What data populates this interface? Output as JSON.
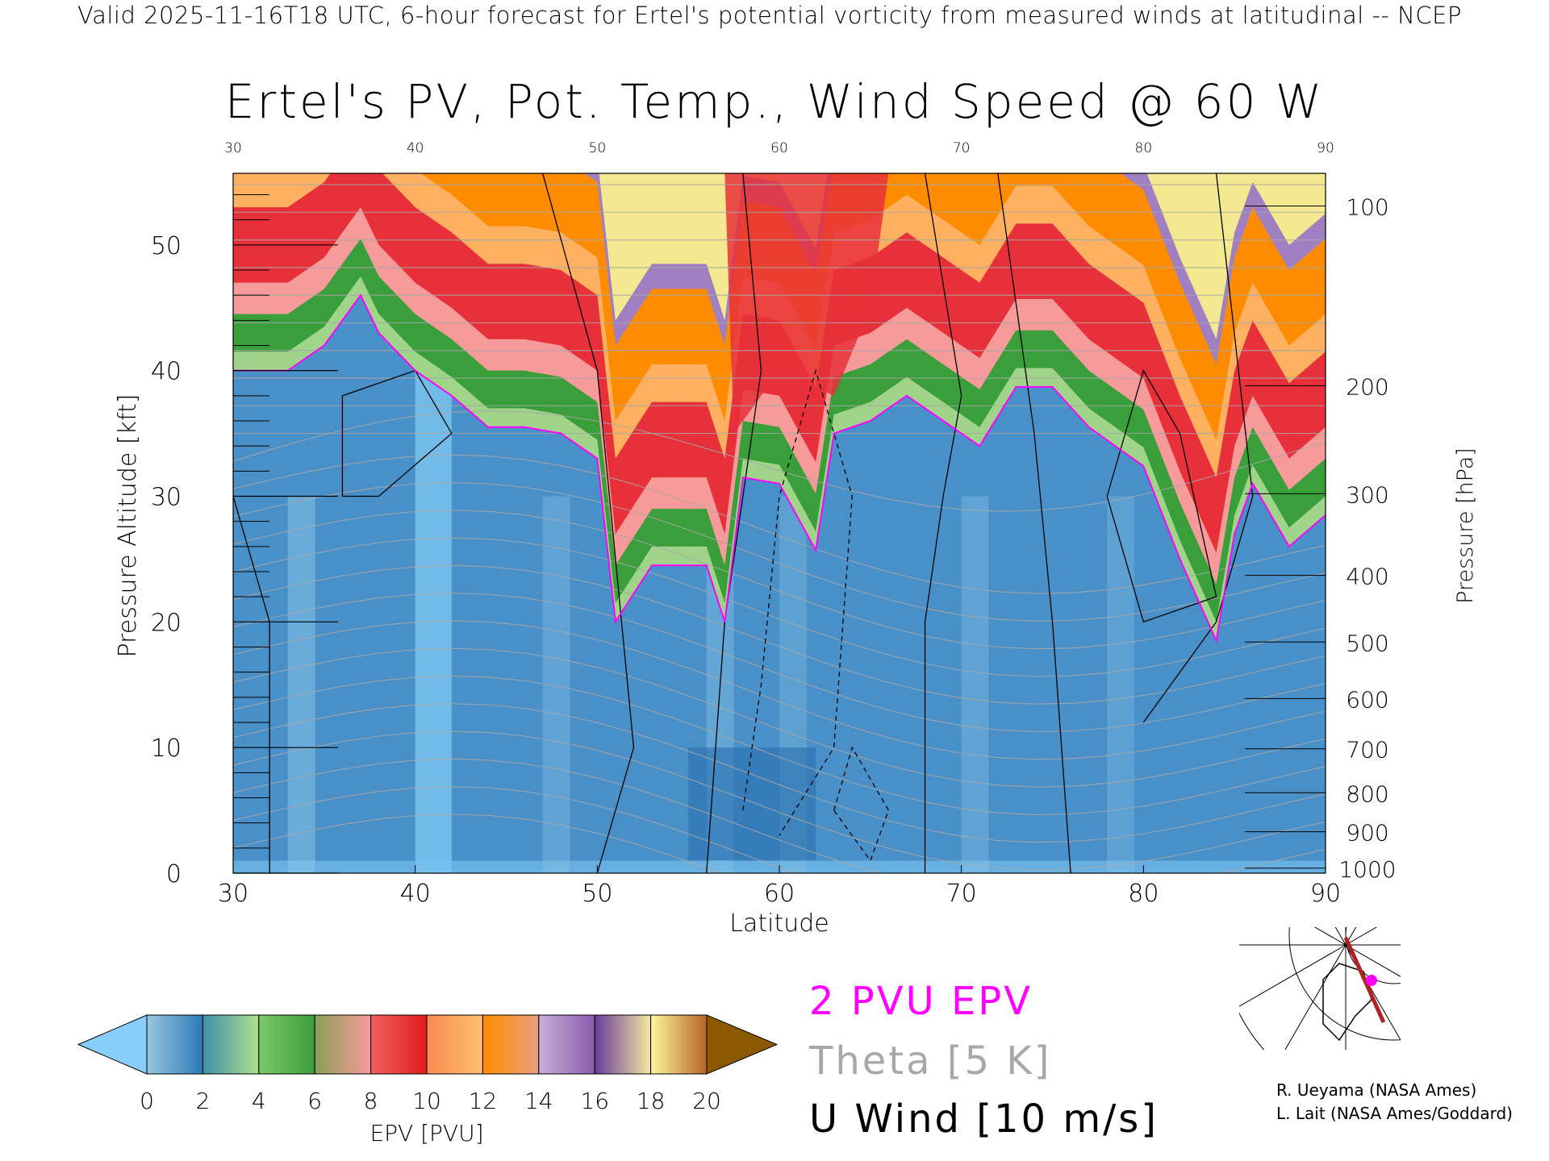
{
  "header": {
    "top_line": "Valid 2025-11-16T18 UTC, 6-hour forecast for Ertel's potential vorticity from measured winds at latitudinal -- NCEP",
    "title": "Ertel's PV, Pot. Temp., Wind Speed @ 60 W"
  },
  "chart_data": {
    "type": "heatmap",
    "title": "Ertel's PV, Pot. Temp., Wind Speed @ 60 W",
    "xlabel": "Latitude",
    "ylabel": "Pressure Altitude [kft]",
    "y2label": "Pressure [hPa]",
    "xlim": [
      30,
      90
    ],
    "ylim": [
      0,
      55.7
    ],
    "x_ticks": [
      "30",
      "40",
      "50",
      "60",
      "70",
      "80",
      "90"
    ],
    "top_x_ticks": [
      "30",
      "40",
      "50",
      "60",
      "70",
      "80",
      "90"
    ],
    "y_ticks": [
      "0",
      "10",
      "20",
      "30",
      "40",
      "50"
    ],
    "pressure_ticks": [
      {
        "label": "100",
        "kft": 53.1
      },
      {
        "label": "200",
        "kft": 38.8
      },
      {
        "label": "300",
        "kft": 30.2
      },
      {
        "label": "400",
        "kft": 23.7
      },
      {
        "label": "500",
        "kft": 18.4
      },
      {
        "label": "600",
        "kft": 13.9
      },
      {
        "label": "700",
        "kft": 9.9
      },
      {
        "label": "800",
        "kft": 6.4
      },
      {
        "label": "900",
        "kft": 3.3
      },
      {
        "label": "1000",
        "kft": 0.4
      }
    ],
    "tropopause_2pvu": {
      "lat": [
        30,
        33,
        35,
        37,
        38,
        40,
        42,
        44,
        46,
        48,
        50,
        51,
        53,
        55,
        56,
        57,
        58,
        60,
        62,
        63,
        65,
        67,
        69,
        71,
        73,
        75,
        77,
        80,
        82,
        84,
        85,
        86,
        88,
        90
      ],
      "kft": [
        40,
        40,
        42,
        46,
        43,
        40,
        38,
        35.5,
        35.5,
        35,
        33,
        20,
        24.5,
        24.5,
        24.5,
        20,
        31.5,
        31,
        25.7,
        35,
        36,
        38,
        36,
        34,
        38.7,
        38.7,
        35.5,
        32.4,
        25,
        18.5,
        27,
        31,
        26,
        28.5
      ]
    },
    "colorbar": {
      "label": "EPV [PVU]",
      "ticks": [
        "0",
        "2",
        "4",
        "6",
        "8",
        "10",
        "12",
        "14",
        "16",
        "18",
        "20"
      ],
      "under_color": "#87cefa",
      "over_color": "#8b5a00",
      "segments": [
        [
          "#9ac6df",
          "#2a7ab6"
        ],
        [
          "#3f8fa8",
          "#b0e08e"
        ],
        [
          "#7cc86a",
          "#3a9e3a"
        ],
        [
          "#8a9e5a",
          "#f79a9a"
        ],
        [
          "#f06060",
          "#e41a1c"
        ],
        [
          "#f88a50",
          "#ffc070"
        ],
        [
          "#ff8c00",
          "#e8a080"
        ],
        [
          "#c8b0d8",
          "#8a5aae"
        ],
        [
          "#6a3d9a",
          "#f4e8a0"
        ],
        [
          "#fff799",
          "#b5652a"
        ]
      ]
    },
    "legend": {
      "pvu": "2 PVU EPV",
      "theta": "Theta [5 K]",
      "wind": "U Wind [10 m/s]"
    },
    "colors": {
      "pvu_line": "#ff00ff",
      "theta_line": "#a8a8a8",
      "wind_line": "#000000"
    }
  },
  "credits": [
    "R. Ueyama (NASA Ames)",
    "L. Lait (NASA Ames/Goddard)"
  ]
}
